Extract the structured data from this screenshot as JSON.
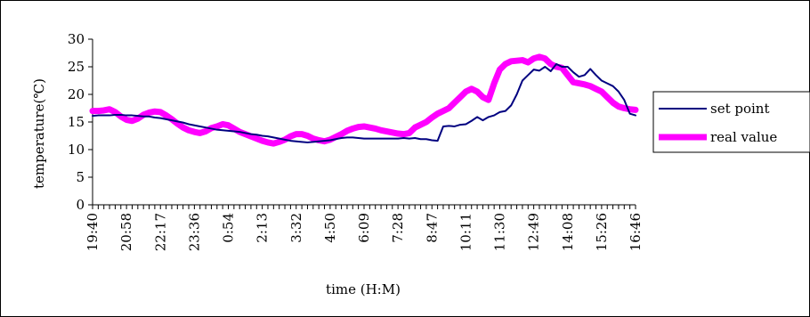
{
  "chart_data": {
    "type": "line",
    "xlabel": "time (H:M)",
    "ylabel": "temperature(℃)",
    "ylim": [
      0,
      30
    ],
    "yticks": [
      0,
      5,
      10,
      15,
      20,
      25,
      30
    ],
    "x_tick_labels": [
      "19:40",
      "20:58",
      "22:17",
      "23:36",
      "0:54",
      "2:13",
      "3:32",
      "4:50",
      "6:09",
      "7:28",
      "8:47",
      "10:11",
      "11:30",
      "12:49",
      "14:08",
      "15:26",
      "16:46"
    ],
    "x_tick_index": [
      0,
      6,
      12,
      18,
      24,
      30,
      36,
      42,
      48,
      54,
      60,
      66,
      72,
      78,
      84,
      90,
      96
    ],
    "n_points": 97,
    "legend_position": "right",
    "grid": false,
    "series": [
      {
        "name": "set point",
        "color": "#000080",
        "values": [
          16.1,
          16.2,
          16.2,
          16.2,
          16.3,
          16.3,
          16.2,
          16.2,
          16.1,
          16.0,
          16.0,
          15.8,
          15.7,
          15.5,
          15.3,
          15.1,
          14.9,
          14.6,
          14.4,
          14.2,
          14.0,
          13.8,
          13.6,
          13.5,
          13.4,
          13.3,
          13.2,
          13.0,
          12.8,
          12.7,
          12.5,
          12.4,
          12.2,
          12.0,
          11.8,
          11.6,
          11.5,
          11.4,
          11.3,
          11.4,
          11.5,
          11.6,
          11.7,
          11.9,
          12.1,
          12.2,
          12.2,
          12.1,
          12.0,
          12.0,
          12.0,
          12.0,
          12.0,
          12.0,
          12.0,
          12.1,
          12.0,
          12.1,
          11.9,
          11.9,
          11.7,
          11.6,
          14.2,
          14.3,
          14.2,
          14.5,
          14.6,
          15.2,
          15.9,
          15.3,
          15.9,
          16.2,
          16.8,
          17.0,
          18.0,
          20.0,
          22.5,
          23.5,
          24.5,
          24.3,
          25.0,
          24.2,
          25.5,
          25.0,
          25.0,
          24.0,
          23.2,
          23.5,
          24.6,
          23.5,
          22.5,
          22.0,
          21.5,
          20.5,
          19.0,
          16.5,
          16.2
        ]
      },
      {
        "name": "real value",
        "color": "#ff00ff",
        "values": [
          17.0,
          17.0,
          17.1,
          17.3,
          16.8,
          16.0,
          15.4,
          15.2,
          15.6,
          16.3,
          16.7,
          16.9,
          16.8,
          16.2,
          15.5,
          14.7,
          14.0,
          13.5,
          13.2,
          13.0,
          13.3,
          13.9,
          14.2,
          14.6,
          14.4,
          13.8,
          13.2,
          12.8,
          12.4,
          12.0,
          11.6,
          11.3,
          11.1,
          11.4,
          11.8,
          12.4,
          12.8,
          12.8,
          12.5,
          12.0,
          11.7,
          11.5,
          11.8,
          12.3,
          12.8,
          13.4,
          13.8,
          14.1,
          14.2,
          14.0,
          13.8,
          13.5,
          13.3,
          13.1,
          12.9,
          12.8,
          13.0,
          14.0,
          14.5,
          15.0,
          15.8,
          16.5,
          17.0,
          17.5,
          18.5,
          19.5,
          20.5,
          21.0,
          20.5,
          19.5,
          19.0,
          22.0,
          24.5,
          25.5,
          26.0,
          26.1,
          26.2,
          25.8,
          26.5,
          26.8,
          26.5,
          25.5,
          25.0,
          24.8,
          23.5,
          22.2,
          22.0,
          21.8,
          21.5,
          21.0,
          20.5,
          19.5,
          18.5,
          17.8,
          17.5,
          17.3,
          17.2
        ]
      }
    ]
  }
}
